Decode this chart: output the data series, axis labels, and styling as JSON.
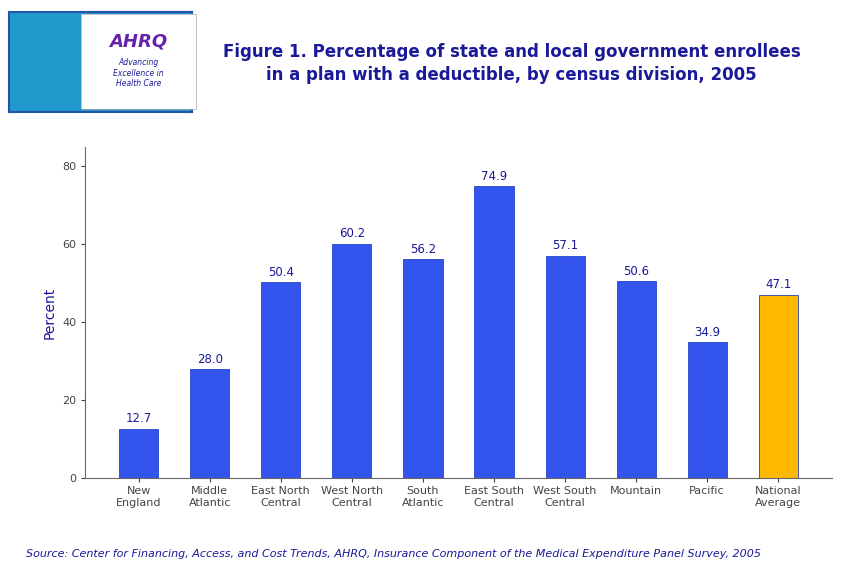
{
  "categories": [
    "New\nEngland",
    "Middle\nAtlantic",
    "East North\nCentral",
    "West North\nCentral",
    "South\nAtlantic",
    "East South\nCentral",
    "West South\nCentral",
    "Mountain",
    "Pacific",
    "National\nAverage"
  ],
  "values": [
    12.7,
    28.0,
    50.4,
    60.2,
    56.2,
    74.9,
    57.1,
    50.6,
    34.9,
    47.1
  ],
  "bar_colors": [
    "#3355EE",
    "#3355EE",
    "#3355EE",
    "#3355EE",
    "#3355EE",
    "#3355EE",
    "#3355EE",
    "#3355EE",
    "#3355EE",
    "#FFB800"
  ],
  "title_line1": "Figure 1. Percentage of state and local government enrollees",
  "title_line2": "in a plan with a deductible, by census division, 2005",
  "ylabel": "Percent",
  "ylim": [
    0,
    85
  ],
  "yticks": [
    0,
    20,
    40,
    60,
    80
  ],
  "source_text": "Source: Center for Financing, Access, and Cost Trends, AHRQ, Insurance Component of the Medical Expenditure Panel Survey, 2005",
  "title_color": "#1A1A99",
  "title_fontsize": 12,
  "bar_label_fontsize": 8.5,
  "axis_label_fontsize": 10,
  "tick_label_fontsize": 8,
  "source_fontsize": 8,
  "background_color": "#FFFFFF",
  "divider_color": "#0000AA",
  "bar_edge_color": "#2244CC",
  "header_line_thickness": 8
}
